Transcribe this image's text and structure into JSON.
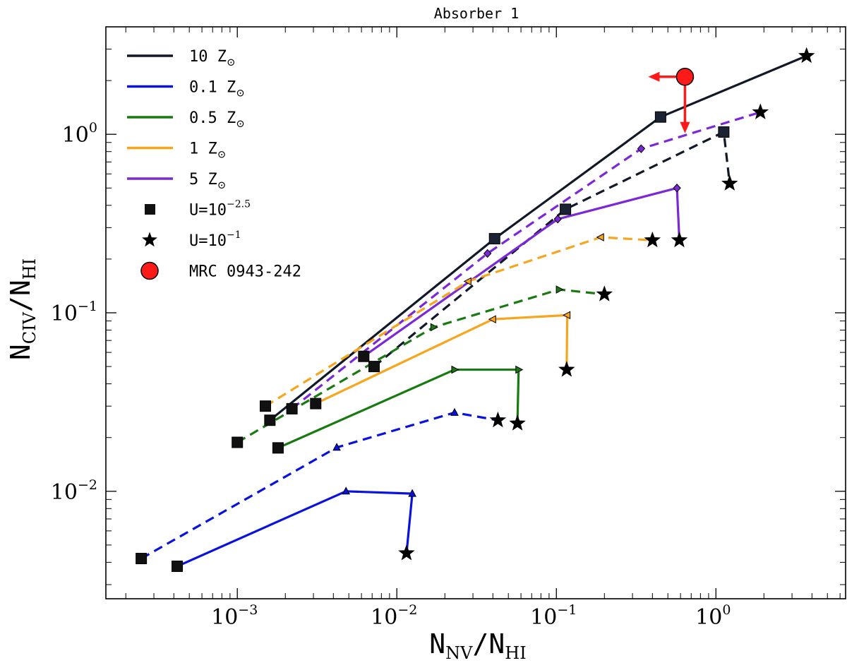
{
  "chart_data": {
    "type": "scatter",
    "title": "Absorber 1",
    "xlabel": "N",
    "xlabel_sub_num": "NV",
    "xlabel_sub_den": "HI",
    "ylabel": "N",
    "ylabel_sub_num": "CIV",
    "ylabel_sub_den": "HI",
    "xscale": "log",
    "yscale": "log",
    "xlim": [
      0.00015,
      6.5
    ],
    "ylim": [
      0.0025,
      4.0
    ],
    "xticks": [
      {
        "value": 0.001,
        "base": "10",
        "exp": "−3"
      },
      {
        "value": 0.01,
        "base": "10",
        "exp": "−2"
      },
      {
        "value": 0.1,
        "base": "10",
        "exp": "−1"
      },
      {
        "value": 1,
        "base": "10",
        "exp": "0"
      }
    ],
    "yticks": [
      {
        "value": 0.01,
        "base": "10",
        "exp": "−2"
      },
      {
        "value": 0.1,
        "base": "10",
        "exp": "−1"
      },
      {
        "value": 1,
        "base": "10",
        "exp": "0"
      }
    ],
    "legend": {
      "position": "top-left",
      "entries": [
        {
          "label": "10 Z",
          "sym": "⊙",
          "color": "#111827",
          "kind": "line"
        },
        {
          "label": "0.1 Z",
          "sym": "⊙",
          "color": "#0a12e0",
          "kind": "line"
        },
        {
          "label": "0.5 Z",
          "sym": "⊙",
          "color": "#1a7a12",
          "kind": "line"
        },
        {
          "label": "1 Z",
          "sym": "⊙",
          "color": "#f7a51c",
          "kind": "line"
        },
        {
          "label": "5 Z",
          "sym": "⊙",
          "color": "#7b28d6",
          "kind": "line"
        },
        {
          "label": "U=10",
          "exp": "−2.5",
          "kind": "square"
        },
        {
          "label": "U=10",
          "exp": "−1",
          "kind": "star"
        },
        {
          "label": "MRC 0943-242",
          "kind": "circle"
        }
      ]
    },
    "series": [
      {
        "name": "10 Z solid",
        "color": "#111827",
        "dash": false,
        "marker": "square",
        "points": [
          [
            0.0016,
            0.025
          ],
          [
            0.041,
            0.26
          ],
          [
            0.45,
            1.25
          ],
          [
            3.7,
            2.75
          ]
        ]
      },
      {
        "name": "10 Z dashed",
        "color": "#111827",
        "dash": true,
        "marker": "square",
        "points": [
          [
            0.0072,
            0.05
          ],
          [
            0.114,
            0.38
          ],
          [
            1.12,
            1.03
          ],
          [
            1.22,
            0.53
          ]
        ]
      },
      {
        "name": "5 Z solid",
        "color": "#7b28d6",
        "dash": false,
        "marker": "diamond",
        "points": [
          [
            0.0062,
            0.057
          ],
          [
            0.102,
            0.335
          ],
          [
            0.57,
            0.5
          ],
          [
            0.59,
            0.255
          ]
        ]
      },
      {
        "name": "5 Z dashed",
        "color": "#7b28d6",
        "dash": true,
        "marker": "diamond",
        "points": [
          [
            0.0022,
            0.029
          ],
          [
            0.037,
            0.215
          ],
          [
            0.34,
            0.83
          ],
          [
            1.9,
            1.33
          ]
        ]
      },
      {
        "name": "1 Z solid",
        "color": "#f7a51c",
        "dash": false,
        "marker": "tri-left",
        "points": [
          [
            0.0031,
            0.031
          ],
          [
            0.04,
            0.092
          ],
          [
            0.117,
            0.097
          ],
          [
            0.116,
            0.048
          ]
        ]
      },
      {
        "name": "1 Z dashed",
        "color": "#f7a51c",
        "dash": true,
        "marker": "tri-left",
        "points": [
          [
            0.0015,
            0.03
          ],
          [
            0.028,
            0.15
          ],
          [
            0.19,
            0.265
          ],
          [
            0.4,
            0.255
          ]
        ]
      },
      {
        "name": "0.5 Z solid",
        "color": "#1a7a12",
        "dash": false,
        "marker": "tri-right",
        "points": [
          [
            0.0018,
            0.0175
          ],
          [
            0.023,
            0.048
          ],
          [
            0.058,
            0.048
          ],
          [
            0.057,
            0.024
          ]
        ]
      },
      {
        "name": "0.5 Z dashed",
        "color": "#1a7a12",
        "dash": true,
        "marker": "tri-right",
        "points": [
          [
            0.001,
            0.0188
          ],
          [
            0.017,
            0.083
          ],
          [
            0.104,
            0.135
          ],
          [
            0.2,
            0.127
          ]
        ]
      },
      {
        "name": "0.1 Z solid",
        "color": "#0a12e0",
        "dash": false,
        "marker": "tri-up",
        "points": [
          [
            0.00042,
            0.0038
          ],
          [
            0.0048,
            0.01
          ],
          [
            0.0125,
            0.0097
          ],
          [
            0.0115,
            0.0045
          ]
        ]
      },
      {
        "name": "0.1 Z dashed",
        "color": "#0a12e0",
        "dash": true,
        "marker": "tri-up",
        "points": [
          [
            0.00025,
            0.0042
          ],
          [
            0.0042,
            0.0176
          ],
          [
            0.023,
            0.0276
          ],
          [
            0.043,
            0.025
          ]
        ]
      }
    ],
    "observation": {
      "name": "MRC 0943-242",
      "x": 0.64,
      "y": 2.1,
      "color": "#ff1a1a",
      "limits": [
        "upper-x",
        "upper-y"
      ]
    }
  }
}
